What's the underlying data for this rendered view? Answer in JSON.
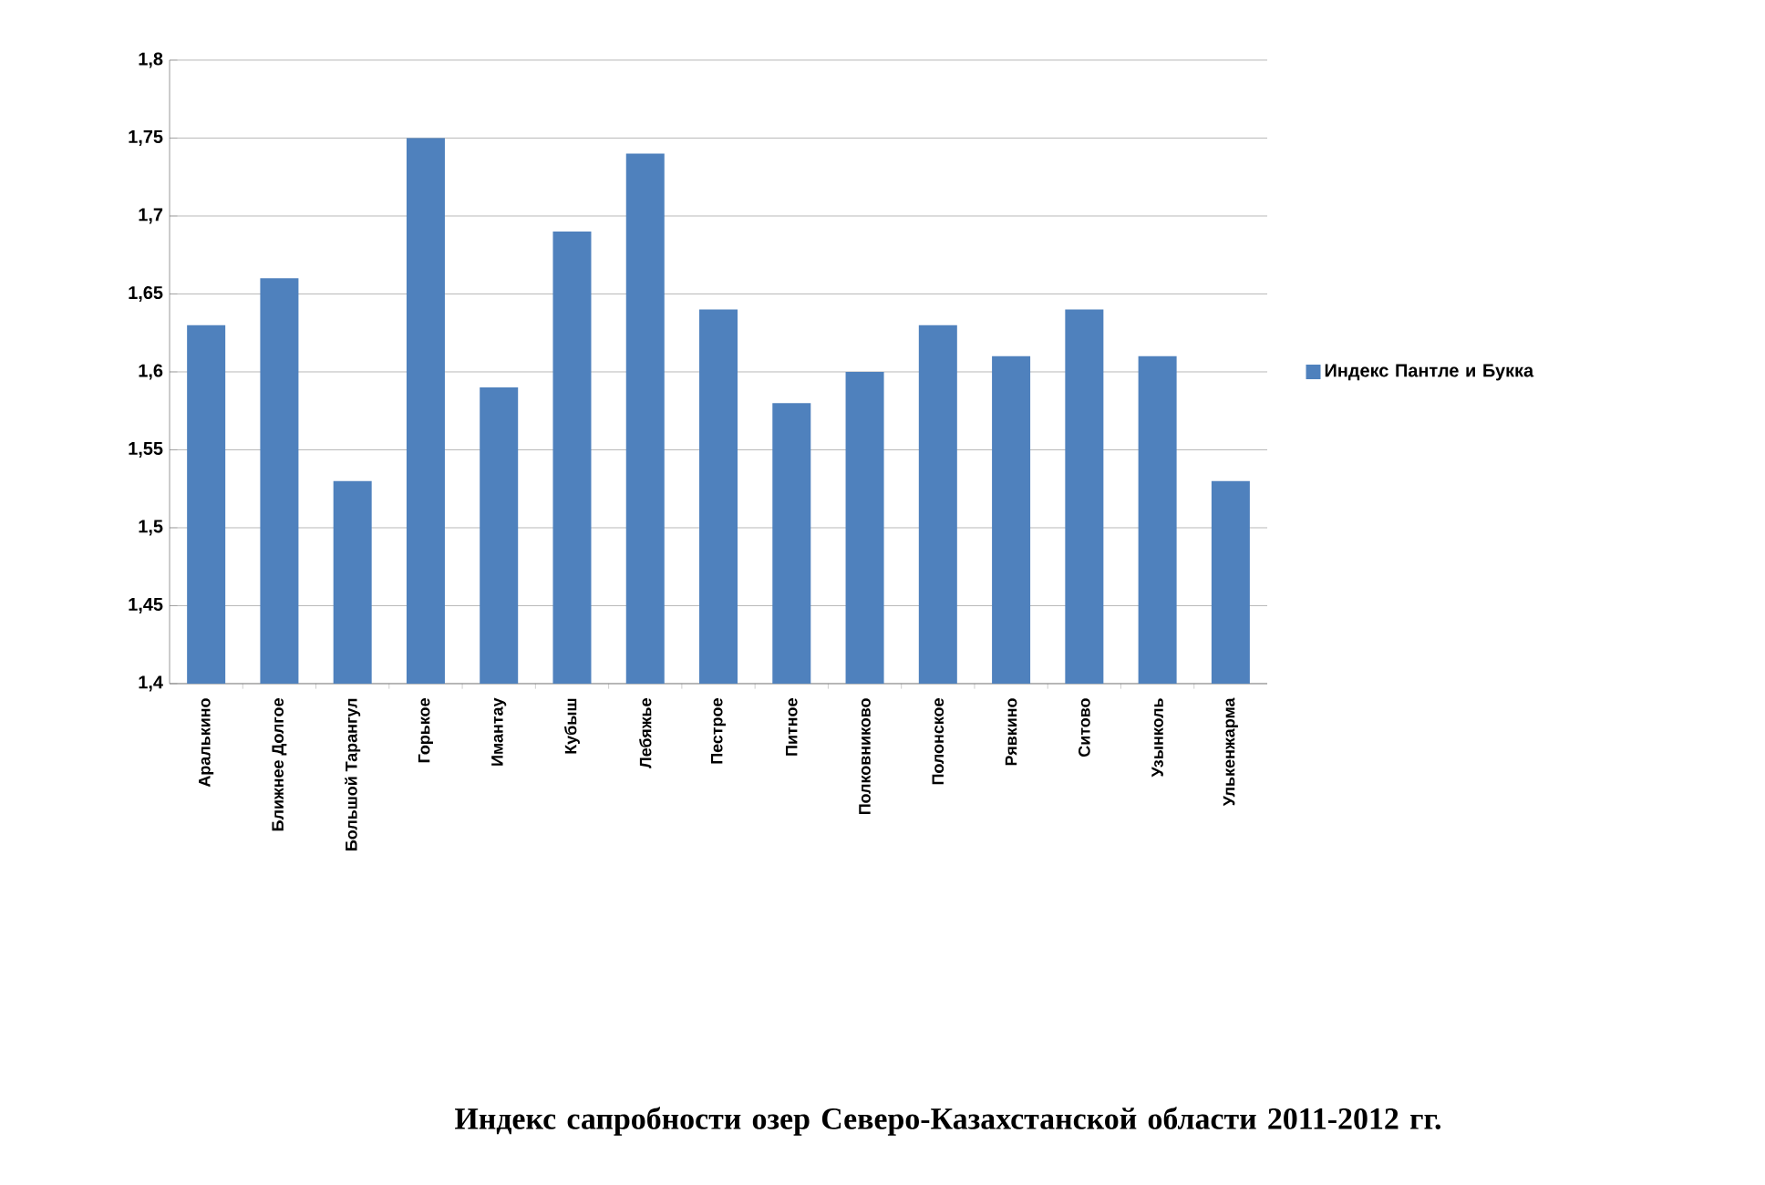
{
  "chart_data": {
    "type": "bar",
    "title": "Индекс сапробности озер Северо-Казахстанской области 2011-2012 гг.",
    "categories": [
      "Аралькино",
      "Ближнее Долгое",
      "Большой Тарангул",
      "Горькое",
      "Имантау",
      "Кубыш",
      "Лебяжье",
      "Пестрое",
      "Питное",
      "Полковниково",
      "Полонское",
      "Рявкино",
      "Ситово",
      "Узынколь",
      "Улькенжарма"
    ],
    "series": [
      {
        "name": "Индекс Пантле и Букка",
        "color": "#4f81bd",
        "values": [
          1.63,
          1.66,
          1.53,
          1.75,
          1.59,
          1.69,
          1.74,
          1.64,
          1.58,
          1.6,
          1.63,
          1.61,
          1.64,
          1.61,
          1.53
        ]
      }
    ],
    "ylim": [
      1.4,
      1.8
    ],
    "yticks": [
      {
        "value": 1.4,
        "label": "1,4"
      },
      {
        "value": 1.45,
        "label": "1,45"
      },
      {
        "value": 1.5,
        "label": "1,5"
      },
      {
        "value": 1.55,
        "label": "1,55"
      },
      {
        "value": 1.6,
        "label": "1,6"
      },
      {
        "value": 1.65,
        "label": "1,65"
      },
      {
        "value": 1.7,
        "label": "1,7"
      },
      {
        "value": 1.75,
        "label": "1,75"
      },
      {
        "value": 1.8,
        "label": "1,8"
      }
    ],
    "grid": "y",
    "legend": "right"
  }
}
